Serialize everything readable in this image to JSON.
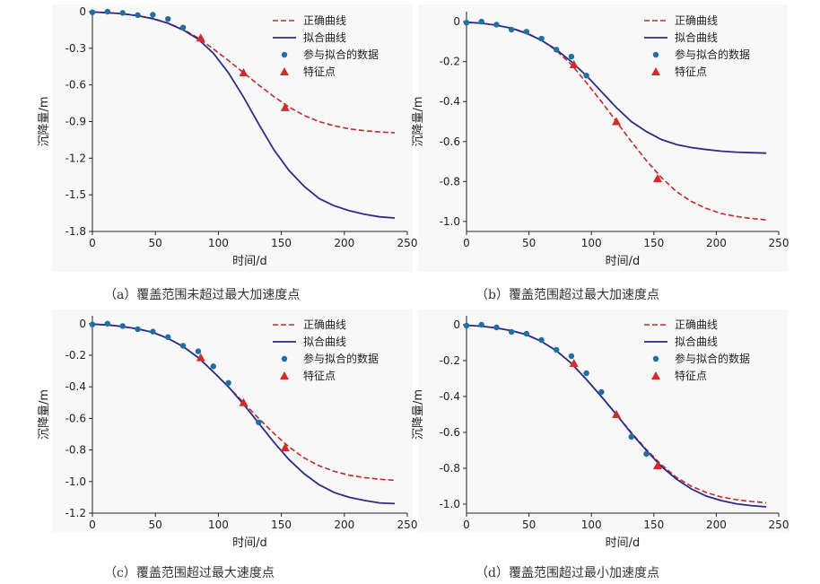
{
  "colors": {
    "correct": "#c0282d",
    "fitted": "#2b2d86",
    "fitted_points": "#1f6fa0",
    "feature_points": "#d42a2a",
    "panel_bg": "#f8f8f8"
  },
  "legend_labels": [
    "正确曲线",
    "拟合曲线",
    "参与拟合的数据",
    "特征点"
  ],
  "chart_data": [
    {
      "type": "line",
      "caption": "（a）覆盖范围未超过最大加速度点",
      "xlabel": "时间/d",
      "ylabel": "沉降量/m",
      "xlim": [
        0,
        250
      ],
      "ylim": [
        -1.8,
        0
      ],
      "xticks": [
        0,
        50,
        100,
        150,
        200,
        250
      ],
      "yticks": [
        0,
        -0.3,
        -0.6,
        -0.9,
        -1.2,
        -1.5,
        -1.8
      ],
      "ytick_labels": [
        "0",
        "-0.3",
        "-0.6",
        "-0.9",
        "-1.2",
        "-1.5",
        "-1.8"
      ],
      "legend_position": "top-right",
      "series": [
        {
          "name": "正确曲线",
          "style": "dashed",
          "x": [
            0,
            12,
            24,
            36,
            48,
            60,
            72,
            84,
            96,
            108,
            120,
            132,
            144,
            156,
            168,
            180,
            192,
            204,
            216,
            228,
            240
          ],
          "y": [
            -0.003,
            -0.008,
            -0.018,
            -0.033,
            -0.055,
            -0.093,
            -0.145,
            -0.215,
            -0.305,
            -0.4,
            -0.5,
            -0.6,
            -0.695,
            -0.78,
            -0.85,
            -0.9,
            -0.935,
            -0.96,
            -0.975,
            -0.985,
            -0.992
          ]
        },
        {
          "name": "拟合曲线",
          "style": "solid",
          "x": [
            0,
            12,
            24,
            36,
            48,
            60,
            72,
            84,
            96,
            108,
            120,
            132,
            144,
            156,
            168,
            180,
            192,
            204,
            216,
            228,
            240
          ],
          "y": [
            -0.003,
            -0.008,
            -0.018,
            -0.033,
            -0.058,
            -0.095,
            -0.15,
            -0.225,
            -0.34,
            -0.5,
            -0.7,
            -0.92,
            -1.13,
            -1.3,
            -1.43,
            -1.53,
            -1.59,
            -1.63,
            -1.66,
            -1.68,
            -1.69
          ]
        },
        {
          "name": "参与拟合的数据",
          "style": "points",
          "x": [
            0,
            12,
            24,
            36,
            48,
            60,
            72
          ],
          "y": [
            -0.005,
            0.0,
            -0.01,
            -0.028,
            -0.025,
            -0.06,
            -0.13
          ]
        },
        {
          "name": "特征点",
          "style": "triangles",
          "x": [
            86,
            120,
            153
          ],
          "y": [
            -0.215,
            -0.5,
            -0.785
          ]
        }
      ]
    },
    {
      "type": "line",
      "caption": "（b）覆盖范围超过最大加速度点",
      "xlabel": "时间/d",
      "ylabel": "沉降量/m",
      "xlim": [
        0,
        250
      ],
      "ylim": [
        -1.05,
        0.05
      ],
      "xticks": [
        0,
        50,
        100,
        150,
        200,
        250
      ],
      "yticks": [
        0,
        -0.2,
        -0.4,
        -0.6,
        -0.8,
        -1.0
      ],
      "ytick_labels": [
        "0",
        "-0.2",
        "-0.4",
        "-0.6",
        "-0.8",
        "-1.0"
      ],
      "legend_position": "top-right",
      "series": [
        {
          "name": "正确曲线",
          "style": "dashed",
          "x": [
            0,
            12,
            24,
            36,
            48,
            60,
            72,
            84,
            96,
            108,
            120,
            132,
            144,
            156,
            168,
            180,
            192,
            204,
            216,
            228,
            240
          ],
          "y": [
            -0.003,
            -0.008,
            -0.018,
            -0.033,
            -0.055,
            -0.093,
            -0.145,
            -0.215,
            -0.305,
            -0.4,
            -0.5,
            -0.6,
            -0.695,
            -0.78,
            -0.85,
            -0.9,
            -0.935,
            -0.96,
            -0.975,
            -0.985,
            -0.992
          ]
        },
        {
          "name": "拟合曲线",
          "style": "solid",
          "x": [
            0,
            12,
            24,
            36,
            48,
            60,
            72,
            84,
            96,
            108,
            120,
            132,
            144,
            156,
            168,
            180,
            192,
            204,
            216,
            228,
            240
          ],
          "y": [
            -0.003,
            -0.008,
            -0.018,
            -0.033,
            -0.058,
            -0.093,
            -0.14,
            -0.2,
            -0.27,
            -0.35,
            -0.43,
            -0.5,
            -0.55,
            -0.59,
            -0.615,
            -0.63,
            -0.64,
            -0.648,
            -0.653,
            -0.656,
            -0.658
          ]
        },
        {
          "name": "参与拟合的数据",
          "style": "points",
          "x": [
            0,
            12,
            24,
            36,
            48,
            60,
            72,
            84,
            96
          ],
          "y": [
            -0.005,
            0.0,
            -0.015,
            -0.04,
            -0.05,
            -0.085,
            -0.14,
            -0.175,
            -0.27
          ]
        },
        {
          "name": "特征点",
          "style": "triangles",
          "x": [
            86,
            120,
            153
          ],
          "y": [
            -0.215,
            -0.5,
            -0.785
          ]
        }
      ]
    },
    {
      "type": "line",
      "caption": "（c）覆盖范围超过最大速度点",
      "xlabel": "时间/d",
      "ylabel": "沉降量/m",
      "xlim": [
        0,
        250
      ],
      "ylim": [
        -1.2,
        0.05
      ],
      "xticks": [
        0,
        50,
        100,
        150,
        200,
        250
      ],
      "yticks": [
        0,
        -0.2,
        -0.4,
        -0.6,
        -0.8,
        -1.0,
        -1.2
      ],
      "ytick_labels": [
        "0",
        "-0.2",
        "-0.4",
        "-0.6",
        "-0.8",
        "-1.0",
        "-1.2"
      ],
      "legend_position": "top-right",
      "series": [
        {
          "name": "正确曲线",
          "style": "dashed",
          "x": [
            0,
            12,
            24,
            36,
            48,
            60,
            72,
            84,
            96,
            108,
            120,
            132,
            144,
            156,
            168,
            180,
            192,
            204,
            216,
            228,
            240
          ],
          "y": [
            -0.003,
            -0.008,
            -0.018,
            -0.033,
            -0.055,
            -0.093,
            -0.145,
            -0.215,
            -0.305,
            -0.4,
            -0.5,
            -0.6,
            -0.695,
            -0.78,
            -0.85,
            -0.9,
            -0.935,
            -0.96,
            -0.975,
            -0.985,
            -0.992
          ]
        },
        {
          "name": "拟合曲线",
          "style": "solid",
          "x": [
            0,
            12,
            24,
            36,
            48,
            60,
            72,
            84,
            96,
            108,
            120,
            132,
            144,
            156,
            168,
            180,
            192,
            204,
            216,
            228,
            240
          ],
          "y": [
            -0.003,
            -0.008,
            -0.018,
            -0.033,
            -0.055,
            -0.093,
            -0.145,
            -0.215,
            -0.305,
            -0.4,
            -0.51,
            -0.63,
            -0.75,
            -0.86,
            -0.95,
            -1.02,
            -1.07,
            -1.1,
            -1.12,
            -1.135,
            -1.14
          ]
        },
        {
          "name": "参与拟合的数据",
          "style": "points",
          "x": [
            0,
            12,
            24,
            36,
            48,
            60,
            72,
            84,
            96,
            108,
            132
          ],
          "y": [
            -0.005,
            0.0,
            -0.015,
            -0.035,
            -0.05,
            -0.085,
            -0.14,
            -0.175,
            -0.27,
            -0.375,
            -0.625
          ]
        },
        {
          "name": "特征点",
          "style": "triangles",
          "x": [
            86,
            120,
            153
          ],
          "y": [
            -0.215,
            -0.5,
            -0.785
          ]
        }
      ]
    },
    {
      "type": "line",
      "caption": "（d）覆盖范围超过最小加速度点",
      "xlabel": "时间/d",
      "ylabel": "沉降量/m",
      "xlim": [
        0,
        250
      ],
      "ylim": [
        -1.05,
        0.05
      ],
      "xticks": [
        0,
        50,
        100,
        150,
        200,
        250
      ],
      "yticks": [
        0,
        -0.2,
        -0.4,
        -0.6,
        -0.8,
        -1.0
      ],
      "ytick_labels": [
        "0",
        "-0.2",
        "-0.4",
        "-0.6",
        "-0.8",
        "-1.0"
      ],
      "legend_position": "top-right",
      "series": [
        {
          "name": "正确曲线",
          "style": "dashed",
          "x": [
            0,
            12,
            24,
            36,
            48,
            60,
            72,
            84,
            96,
            108,
            120,
            132,
            144,
            156,
            168,
            180,
            192,
            204,
            216,
            228,
            240
          ],
          "y": [
            -0.003,
            -0.008,
            -0.018,
            -0.033,
            -0.055,
            -0.093,
            -0.145,
            -0.215,
            -0.305,
            -0.4,
            -0.5,
            -0.6,
            -0.695,
            -0.78,
            -0.85,
            -0.9,
            -0.935,
            -0.96,
            -0.975,
            -0.985,
            -0.992
          ]
        },
        {
          "name": "拟合曲线",
          "style": "solid",
          "x": [
            0,
            12,
            24,
            36,
            48,
            60,
            72,
            84,
            96,
            108,
            120,
            132,
            144,
            156,
            168,
            180,
            192,
            204,
            216,
            228,
            240
          ],
          "y": [
            -0.003,
            -0.008,
            -0.018,
            -0.033,
            -0.055,
            -0.093,
            -0.145,
            -0.215,
            -0.305,
            -0.4,
            -0.5,
            -0.605,
            -0.7,
            -0.79,
            -0.86,
            -0.915,
            -0.955,
            -0.98,
            -0.998,
            -1.008,
            -1.015
          ]
        },
        {
          "name": "参与拟合的数据",
          "style": "points",
          "x": [
            0,
            12,
            24,
            36,
            48,
            60,
            72,
            84,
            96,
            108,
            132,
            144
          ],
          "y": [
            -0.005,
            0.0,
            -0.015,
            -0.04,
            -0.05,
            -0.085,
            -0.14,
            -0.175,
            -0.27,
            -0.375,
            -0.625,
            -0.72
          ]
        },
        {
          "name": "特征点",
          "style": "triangles",
          "x": [
            86,
            120,
            153
          ],
          "y": [
            -0.215,
            -0.5,
            -0.785
          ]
        }
      ]
    }
  ]
}
